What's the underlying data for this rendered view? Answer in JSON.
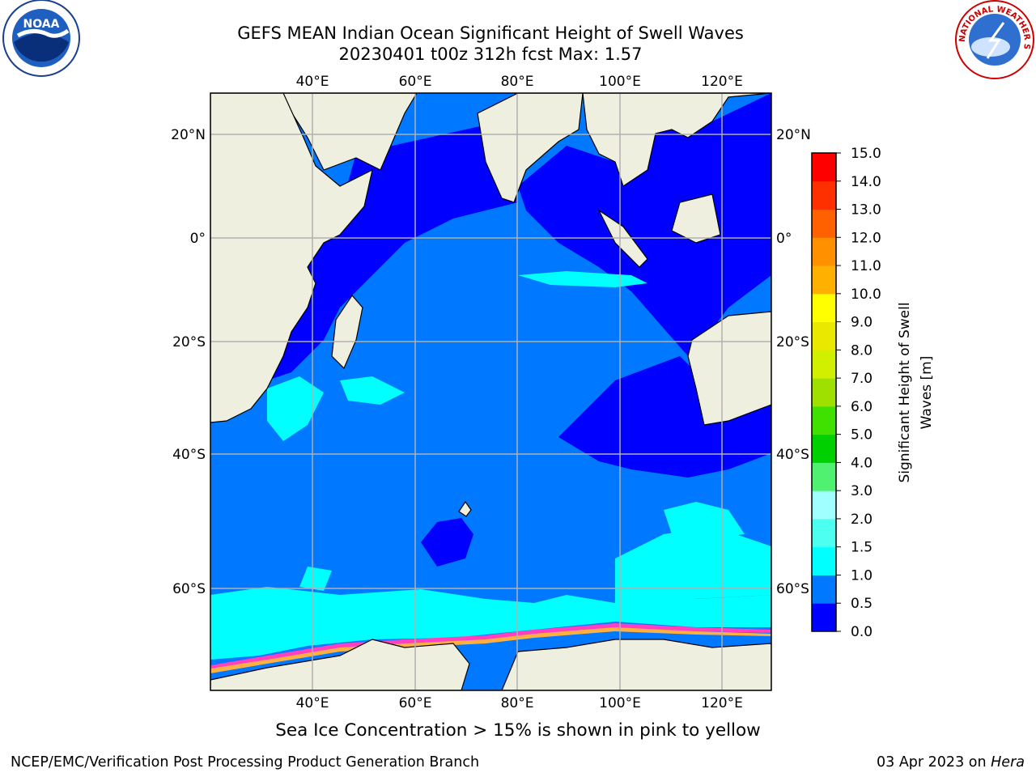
{
  "title_line1": "GEFS MEAN Indian Ocean Significant Height of Swell Waves",
  "title_line2": "20230401 t00z 312h fcst   Max: 1.57",
  "sea_ice_note": "Sea Ice Concentration > 15% is shown in pink to yellow",
  "footer": {
    "left": "NCEP/EMC/Verification Post Processing Product Generation Branch",
    "date": "03 Apr 2023 on ",
    "host": "Hera"
  },
  "logos": {
    "left": "noaa-logo",
    "right": "national-weather-service-logo"
  },
  "logo_text": {
    "noaa": "NOAA",
    "nws": "NATIONAL WEATHER SERVICE"
  },
  "map": {
    "lon_ticks": [
      "40°E",
      "60°E",
      "80°E",
      "100°E",
      "120°E"
    ],
    "lat_ticks": [
      "20°N",
      "0°",
      "20°S",
      "40°S",
      "60°S"
    ],
    "colors": {
      "land": "#efefdf",
      "ocean_deep": "#0000ff",
      "ocean_mid": "#0078ff",
      "ocean_cyan": "#00ffff",
      "grid": "#b0b0b0"
    }
  },
  "colorbar": {
    "label_line1": "Significant Height of Swell",
    "label_line2": "Waves [m]",
    "ticks": [
      "0.0",
      "0.5",
      "1.0",
      "1.5",
      "2.0",
      "3.0",
      "4.0",
      "5.0",
      "6.0",
      "7.0",
      "8.0",
      "9.0",
      "10.0",
      "11.0",
      "12.0",
      "13.0",
      "14.0",
      "15.0"
    ],
    "colors": [
      "#0000ff",
      "#0078ff",
      "#00ffff",
      "#4cfff0",
      "#a0ffff",
      "#50f070",
      "#00d000",
      "#40e000",
      "#a0e000",
      "#d0f000",
      "#e8e800",
      "#ffff00",
      "#ffb000",
      "#ff9000",
      "#ff6000",
      "#ff3000",
      "#ff0000"
    ]
  }
}
